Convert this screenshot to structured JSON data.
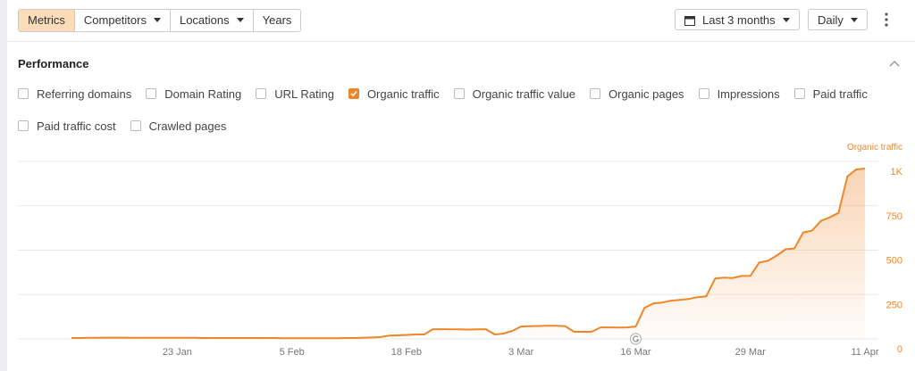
{
  "toolbar": {
    "tabs": [
      "Metrics",
      "Competitors",
      "Locations",
      "Years"
    ],
    "date_range": "Last 3 months",
    "interval": "Daily"
  },
  "section": {
    "title": "Performance",
    "metrics": [
      {
        "label": "Referring domains",
        "checked": false
      },
      {
        "label": "Domain Rating",
        "checked": false
      },
      {
        "label": "URL Rating",
        "checked": false
      },
      {
        "label": "Organic traffic",
        "checked": true
      },
      {
        "label": "Organic traffic value",
        "checked": false
      },
      {
        "label": "Organic pages",
        "checked": false
      },
      {
        "label": "Impressions",
        "checked": false
      },
      {
        "label": "Paid traffic",
        "checked": false
      },
      {
        "label": "Paid traffic cost",
        "checked": false
      },
      {
        "label": "Crawled pages",
        "checked": false
      }
    ]
  },
  "chart_data": {
    "type": "area",
    "categories": [
      null,
      null,
      null,
      null,
      null,
      null,
      null,
      null,
      null,
      null,
      null,
      null,
      "23 Jan",
      null,
      null,
      null,
      null,
      null,
      null,
      null,
      null,
      null,
      null,
      null,
      null,
      "5 Feb",
      null,
      null,
      null,
      null,
      null,
      null,
      null,
      null,
      null,
      null,
      null,
      null,
      "18 Feb",
      null,
      null,
      null,
      null,
      null,
      null,
      null,
      null,
      null,
      null,
      null,
      null,
      "3 Mar",
      null,
      null,
      null,
      null,
      null,
      null,
      null,
      null,
      null,
      null,
      null,
      null,
      "16 Mar",
      null,
      null,
      null,
      null,
      null,
      null,
      null,
      null,
      null,
      null,
      null,
      null,
      "29 Mar",
      null,
      null,
      null,
      null,
      null,
      null,
      null,
      null,
      null,
      null,
      null,
      null,
      "11 Apr"
    ],
    "series": [
      {
        "name": "Organic traffic",
        "color": "#f0862a",
        "values": [
          5,
          5,
          6,
          6,
          7,
          7,
          7,
          6,
          6,
          6,
          6,
          6,
          6,
          6,
          6,
          5,
          5,
          5,
          5,
          5,
          5,
          5,
          5,
          5,
          4,
          4,
          4,
          4,
          4,
          4,
          4,
          5,
          5,
          6,
          8,
          10,
          18,
          20,
          22,
          25,
          25,
          55,
          55,
          54,
          54,
          53,
          54,
          55,
          25,
          30,
          45,
          70,
          72,
          73,
          74,
          74,
          72,
          40,
          40,
          40,
          65,
          65,
          64,
          65,
          70,
          175,
          200,
          205,
          215,
          220,
          225,
          235,
          240,
          340,
          345,
          343,
          355,
          355,
          430,
          440,
          470,
          505,
          510,
          600,
          610,
          665,
          685,
          710,
          915,
          955,
          960
        ]
      }
    ],
    "ylim": [
      0,
      1000
    ],
    "yticks": [
      0,
      250,
      500,
      750,
      {
        "value": 1000,
        "label": "1K"
      }
    ],
    "grid": true
  }
}
